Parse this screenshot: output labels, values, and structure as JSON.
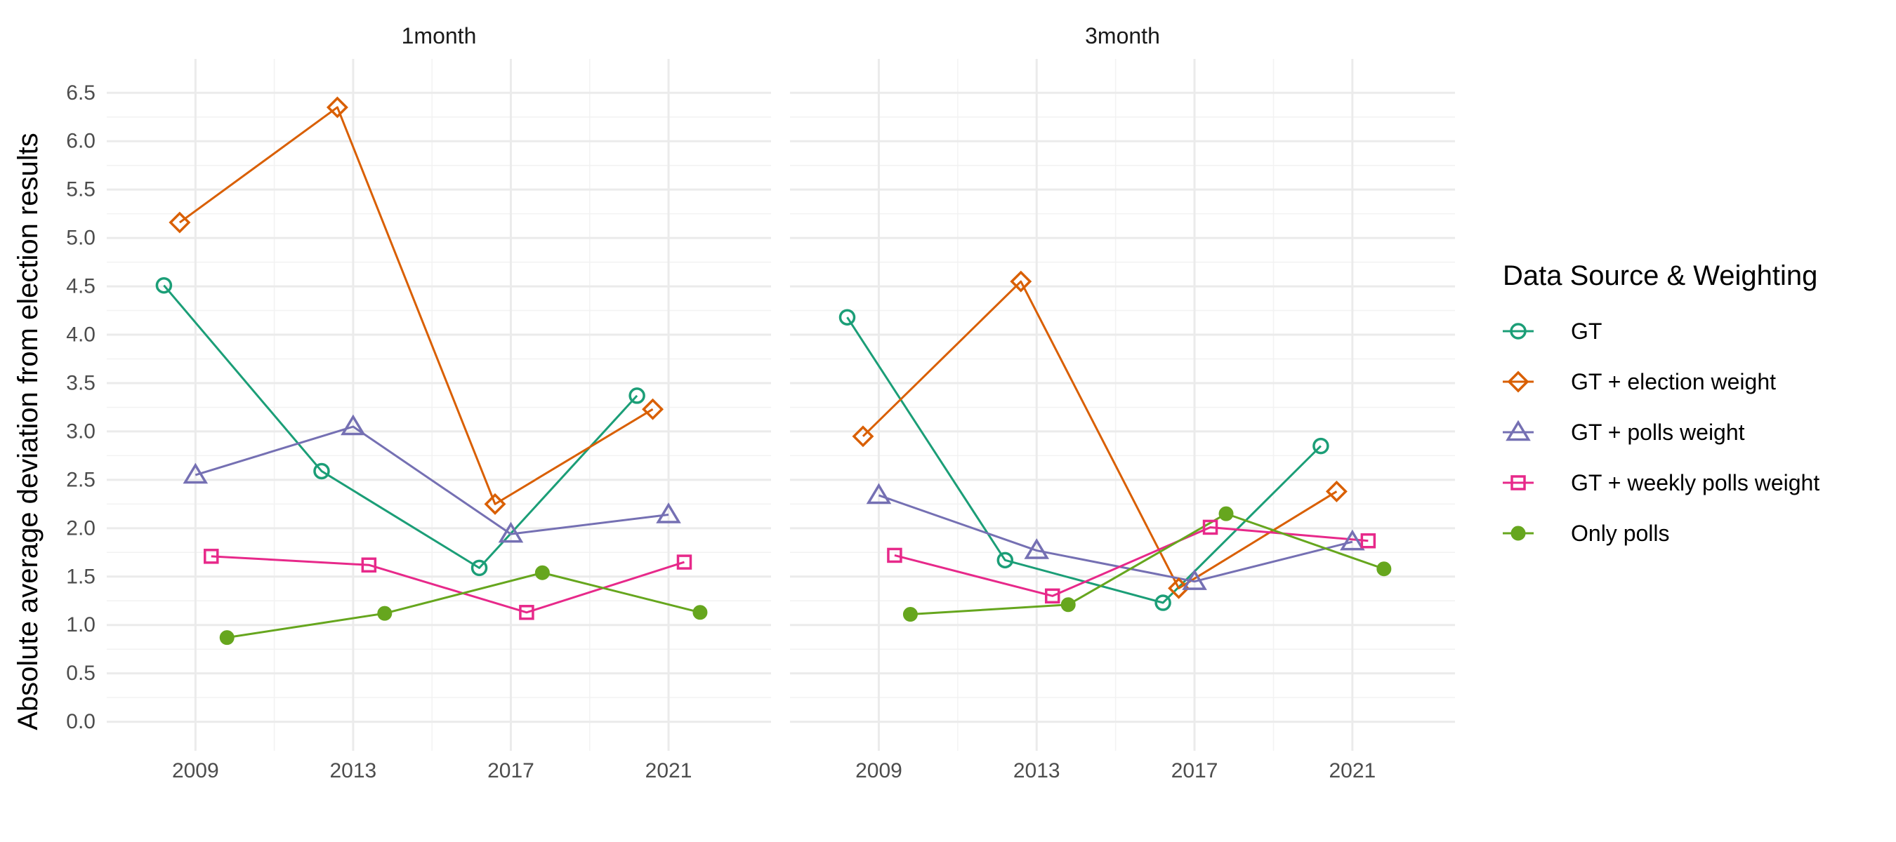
{
  "chart_data": {
    "type": "line",
    "ylabel": "Absolute average deviation from election results",
    "xlabel": "",
    "ylim": [
      -0.3,
      6.85
    ],
    "xlim": [
      2006.75,
      2023.6
    ],
    "y_ticks": [
      "0.0",
      "0.5",
      "1.0",
      "1.5",
      "2.0",
      "2.5",
      "3.0",
      "3.5",
      "4.0",
      "4.5",
      "5.0",
      "5.5",
      "6.0",
      "6.5"
    ],
    "x_ticks": [
      "2009",
      "2013",
      "2017",
      "2021"
    ],
    "grid": true,
    "legend": {
      "title": "Data Source & Weighting",
      "position": "right",
      "items": [
        "GT",
        "GT + election weight",
        "GT + polls weight",
        "GT + weekly polls weight",
        "Only polls"
      ]
    },
    "series_style": [
      {
        "name": "GT",
        "color": "#1b9e77",
        "marker": "open-circle"
      },
      {
        "name": "GT + election weight",
        "color": "#d95f02",
        "marker": "open-diamond"
      },
      {
        "name": "GT + polls weight",
        "color": "#7570b3",
        "marker": "open-triangle"
      },
      {
        "name": "GT + weekly polls weight",
        "color": "#e7298a",
        "marker": "open-square"
      },
      {
        "name": "Only polls",
        "color": "#66a61e",
        "marker": "filled-circle"
      }
    ],
    "panels": [
      {
        "title": "1month",
        "series": [
          {
            "name": "GT",
            "x": [
              2008.2,
              2012.2,
              2016.2,
              2020.2
            ],
            "y": [
              4.51,
              2.59,
              1.59,
              3.37
            ]
          },
          {
            "name": "GT + election weight",
            "x": [
              2008.6,
              2012.6,
              2016.6,
              2020.6
            ],
            "y": [
              5.16,
              6.35,
              2.25,
              3.23
            ]
          },
          {
            "name": "GT + polls weight",
            "x": [
              2009.0,
              2013.0,
              2017.0,
              2021.0
            ],
            "y": [
              2.55,
              3.05,
              1.94,
              2.14
            ]
          },
          {
            "name": "GT + weekly polls weight",
            "x": [
              2009.4,
              2013.4,
              2017.4,
              2021.4
            ],
            "y": [
              1.71,
              1.62,
              1.13,
              1.65
            ]
          },
          {
            "name": "Only polls",
            "x": [
              2009.8,
              2013.8,
              2017.8,
              2021.8
            ],
            "y": [
              0.87,
              1.12,
              1.54,
              1.13
            ]
          }
        ]
      },
      {
        "title": "3month",
        "series": [
          {
            "name": "GT",
            "x": [
              2008.2,
              2012.2,
              2016.2,
              2020.2
            ],
            "y": [
              4.18,
              1.67,
              1.23,
              2.85
            ]
          },
          {
            "name": "GT + election weight",
            "x": [
              2008.6,
              2012.6,
              2016.6,
              2020.6
            ],
            "y": [
              2.95,
              4.55,
              1.38,
              2.38
            ]
          },
          {
            "name": "GT + polls weight",
            "x": [
              2009.0,
              2013.0,
              2017.0,
              2021.0
            ],
            "y": [
              2.34,
              1.77,
              1.45,
              1.86
            ]
          },
          {
            "name": "GT + weekly polls weight",
            "x": [
              2009.4,
              2013.4,
              2017.4,
              2021.4
            ],
            "y": [
              1.72,
              1.3,
              2.01,
              1.87
            ]
          },
          {
            "name": "Only polls",
            "x": [
              2009.8,
              2013.8,
              2017.8,
              2021.8
            ],
            "y": [
              1.11,
              1.21,
              2.15,
              1.58
            ]
          }
        ]
      }
    ]
  }
}
